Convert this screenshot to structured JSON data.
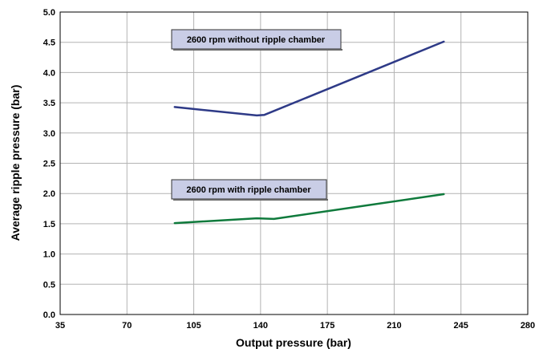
{
  "chart_data": {
    "type": "line",
    "xlabel": "Output pressure (bar)",
    "ylabel": "Average ripple pressure (bar)",
    "xlim": [
      35,
      280
    ],
    "ylim": [
      0.0,
      5.0
    ],
    "x_ticks": [
      "35",
      "70",
      "105",
      "140",
      "175",
      "210",
      "245",
      "280"
    ],
    "y_ticks": [
      "0.0",
      "0.5",
      "1.0",
      "1.5",
      "2.0",
      "2.5",
      "3.0",
      "3.5",
      "4.0",
      "4.5",
      "5.0"
    ],
    "grid": true,
    "series": [
      {
        "name": "2600 rpm without ripple chamber",
        "color": "#2e3a87",
        "x": [
          95,
          138,
          142,
          236
        ],
        "y": [
          3.43,
          3.29,
          3.3,
          4.51
        ]
      },
      {
        "name": "2600 rpm with ripple chamber",
        "color": "#0f7a3c",
        "x": [
          95,
          138,
          147,
          236
        ],
        "y": [
          1.51,
          1.59,
          1.58,
          1.99
        ]
      }
    ],
    "annotations": [
      {
        "text": "2600 rpm without ripple chamber",
        "series": 0
      },
      {
        "text": "2600 rpm with ripple chamber",
        "series": 1
      }
    ]
  }
}
